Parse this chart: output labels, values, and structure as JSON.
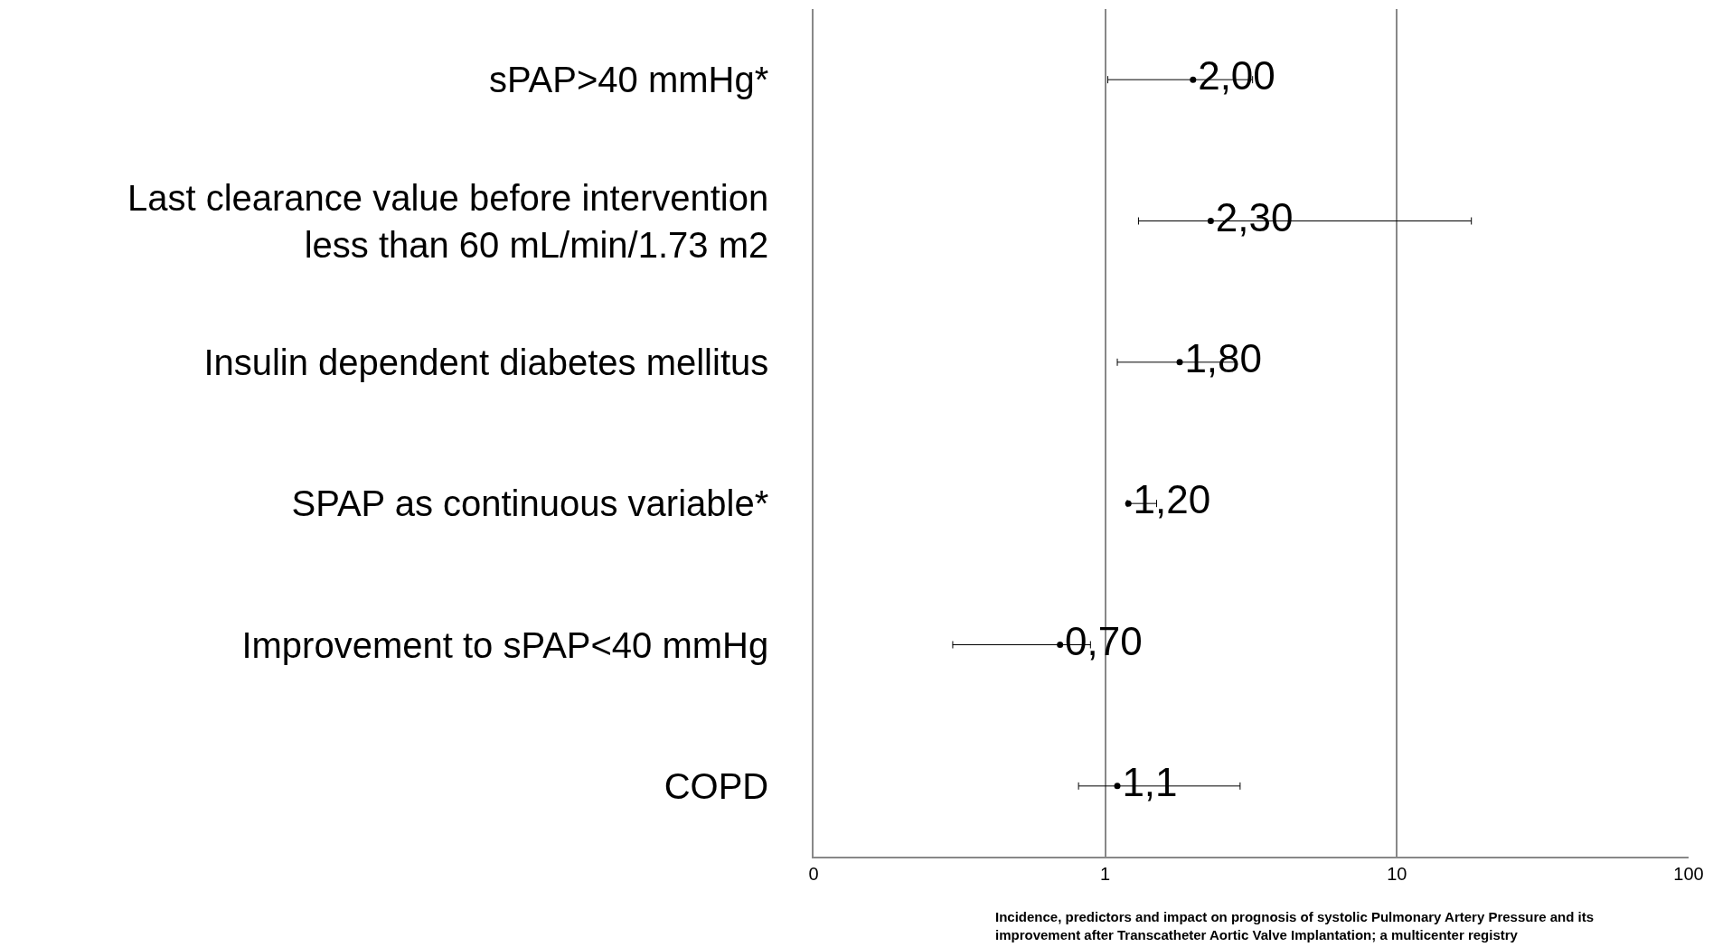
{
  "chart_data": {
    "type": "scatter",
    "orientation": "horizontal",
    "categories": [
      "sPAP>40 mmHg*",
      "Last clearance value before intervention\nless than 60 mL/min/1.73 m2",
      "Insulin dependent diabetes mellitus",
      "SPAP as continuous variable*",
      "Improvement to sPAP<40 mmHg",
      "COPD"
    ],
    "values": [
      2.0,
      2.3,
      1.8,
      1.2,
      0.7,
      1.1
    ],
    "errors": [
      [
        1.02,
        3.2
      ],
      [
        1.3,
        18
      ],
      [
        1.1,
        2.8
      ],
      [
        1.19,
        1.5
      ],
      [
        0.3,
        0.89
      ],
      [
        0.81,
        2.9
      ]
    ],
    "value_labels": [
      "2,00",
      "2,30",
      "1,80",
      "1,20",
      "0,70",
      "1,1"
    ],
    "color": "#000000",
    "marker": "circle",
    "log": "x",
    "xlim": [
      0.1,
      100
    ],
    "xticks": [
      {
        "value": 0.1,
        "label": "0"
      },
      1,
      10,
      100
    ],
    "grid": "x",
    "annotations": [
      "Incidence, predictors and impact on prognosis of systolic Pulmonary Artery Pressure and its\nimprovement after Transcatheter Aortic Valve Implantation; a multicenter registry"
    ]
  }
}
